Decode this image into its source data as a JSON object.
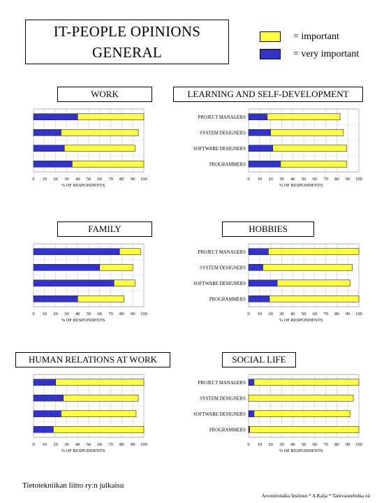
{
  "title": {
    "line1": "IT-PEOPLE OPINIONS",
    "line2": "GENERAL"
  },
  "legend": {
    "important": {
      "label": "= important",
      "color": "#ffff44"
    },
    "very_important": {
      "label": "= very important",
      "color": "#3333cc"
    }
  },
  "footer": {
    "left": "Tietotekniikan liitto ry:n julkaisu",
    "right": "Arvotietotaika Instituut * A.Kalja * Tarkvaratehnika oü"
  },
  "chart_data": [
    {
      "type": "bar",
      "orientation": "horizontal",
      "stacked": true,
      "title": "WORK",
      "xlabel": "% OF RESPONDENTS",
      "xlim": [
        0,
        100
      ],
      "xticks": [
        0,
        10,
        20,
        30,
        40,
        50,
        60,
        70,
        80,
        90,
        100
      ],
      "show_category_labels": false,
      "categories": [
        "PROJECT MANAGERS",
        "SYSTEM DESIGNERS",
        "SOFTWARE DESIGNERS",
        "PROGRAMMERS"
      ],
      "series": [
        {
          "name": "= very important",
          "color": "#3333cc",
          "values": [
            40,
            25,
            28,
            35
          ]
        },
        {
          "name": "= important",
          "color": "#ffff44",
          "values": [
            60,
            70,
            64,
            65
          ]
        }
      ]
    },
    {
      "type": "bar",
      "orientation": "horizontal",
      "stacked": true,
      "title": "LEARNING AND SELF-DEVELOPMENT",
      "xlabel": "% OF RESPONDENTS",
      "xlim": [
        0,
        100
      ],
      "xticks": [
        0,
        10,
        20,
        30,
        40,
        50,
        60,
        70,
        80,
        90,
        100
      ],
      "show_category_labels": true,
      "categories": [
        "PROJECT MANAGERS",
        "SYSTEM DESIGNERS",
        "SOFTWARE DESIGNERS",
        "PROGRAMMERS"
      ],
      "series": [
        {
          "name": "= very important",
          "color": "#3333cc",
          "values": [
            17,
            20,
            22,
            29
          ]
        },
        {
          "name": "= important",
          "color": "#ffff44",
          "values": [
            66,
            66,
            67,
            60
          ]
        }
      ]
    },
    {
      "type": "bar",
      "orientation": "horizontal",
      "stacked": true,
      "title": "FAMILY",
      "xlabel": "% OF RESPONDENTS",
      "xlim": [
        0,
        100
      ],
      "xticks": [
        0,
        10,
        20,
        30,
        40,
        50,
        60,
        70,
        80,
        90,
        100
      ],
      "show_category_labels": false,
      "categories": [
        "PROJECT MANAGERS",
        "SYSTEM DESIGNERS",
        "SOFTWARE DESIGNERS",
        "PROGRAMMERS"
      ],
      "series": [
        {
          "name": "= very important",
          "color": "#3333cc",
          "values": [
            78,
            60,
            73,
            40
          ]
        },
        {
          "name": "= important",
          "color": "#ffff44",
          "values": [
            19,
            30,
            19,
            42
          ]
        }
      ]
    },
    {
      "type": "bar",
      "orientation": "horizontal",
      "stacked": true,
      "title": "HOBBIES",
      "xlabel": "% OF RESPONDENTS",
      "xlim": [
        0,
        100
      ],
      "xticks": [
        0,
        10,
        20,
        30,
        40,
        50,
        60,
        70,
        80,
        90,
        100
      ],
      "show_category_labels": true,
      "categories": [
        "PROJECT MANAGERS",
        "SYSTEM DESIGNERS",
        "SOFTWARE DESIGNERS",
        "PROGRAMMERS"
      ],
      "series": [
        {
          "name": "= very important",
          "color": "#3333cc",
          "values": [
            18,
            13,
            26,
            19
          ]
        },
        {
          "name": "= important",
          "color": "#ffff44",
          "values": [
            82,
            81,
            66,
            81
          ]
        }
      ]
    },
    {
      "type": "bar",
      "orientation": "horizontal",
      "stacked": true,
      "title": "HUMAN RELATIONS AT WORK",
      "xlabel": "% OF RESPONDENTS",
      "xlim": [
        0,
        100
      ],
      "xticks": [
        0,
        10,
        20,
        30,
        40,
        50,
        60,
        70,
        80,
        90,
        100
      ],
      "show_category_labels": false,
      "categories": [
        "PROJECT MANAGERS",
        "SYSTEM DESIGNERS",
        "SOFTWARE DESIGNERS",
        "PROGRAMMERS"
      ],
      "series": [
        {
          "name": "= very important",
          "color": "#3333cc",
          "values": [
            20,
            27,
            25,
            18
          ]
        },
        {
          "name": "= important",
          "color": "#ffff44",
          "values": [
            80,
            68,
            68,
            82
          ]
        }
      ]
    },
    {
      "type": "bar",
      "orientation": "horizontal",
      "stacked": true,
      "title": "SOCIAL LIFE",
      "xlabel": "% OF RESPONDENTS",
      "xlim": [
        0,
        100
      ],
      "xticks": [
        0,
        10,
        20,
        30,
        40,
        50,
        60,
        70,
        80,
        90,
        100
      ],
      "show_category_labels": true,
      "categories": [
        "PROJECT MANAGERS",
        "SYSTEM DESIGNERS",
        "SOFTWARE DESIGNERS",
        "PROGRAMMERS"
      ],
      "series": [
        {
          "name": "= very important",
          "color": "#3333cc",
          "values": [
            5,
            0,
            5,
            1
          ]
        },
        {
          "name": "= important",
          "color": "#ffff44",
          "values": [
            95,
            95,
            87,
            99
          ]
        }
      ]
    }
  ]
}
